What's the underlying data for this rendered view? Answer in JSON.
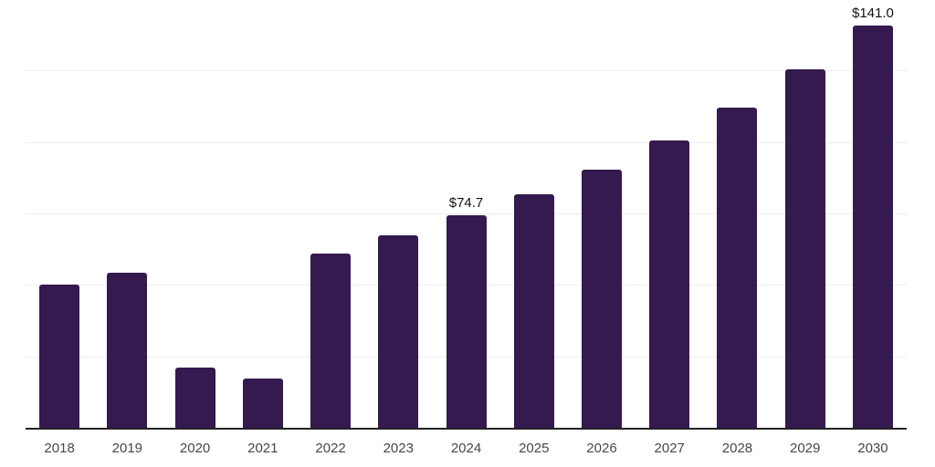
{
  "chart_data": {
    "type": "bar",
    "title": "",
    "xlabel": "",
    "ylabel": "",
    "categories": [
      "2018",
      "2019",
      "2020",
      "2021",
      "2022",
      "2023",
      "2024",
      "2025",
      "2026",
      "2027",
      "2028",
      "2029",
      "2030"
    ],
    "values": [
      50.4,
      54.6,
      21.4,
      17.4,
      61.4,
      67.8,
      74.7,
      82.1,
      90.6,
      100.8,
      112.4,
      125.6,
      141.0
    ],
    "point_labels": [
      "",
      "",
      "",
      "",
      "",
      "",
      "$74.7",
      "",
      "",
      "",
      "",
      "",
      "$141.0"
    ],
    "ylim": [
      0,
      150
    ],
    "gridline_step": 25,
    "grid": "horizontal-only",
    "legend_position": "none",
    "y_axis_tick_labels_visible": false,
    "colors": {
      "bar": "#341a4e",
      "axis_line": "#222222",
      "gridline": "#ededed",
      "tick_label": "#474747",
      "value_label": "#111111",
      "background": "#ffffff"
    }
  }
}
